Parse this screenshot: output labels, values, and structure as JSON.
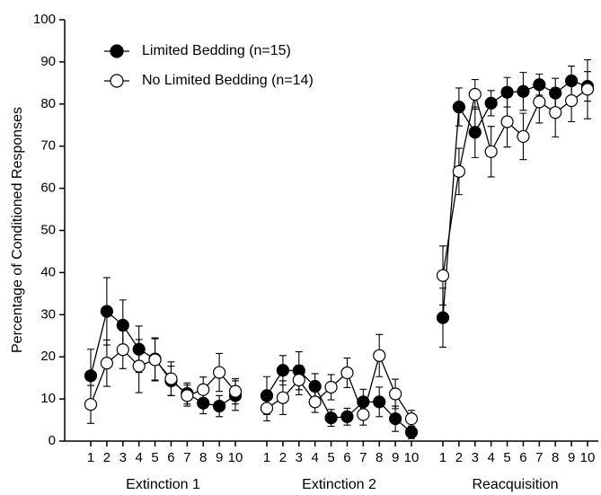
{
  "chart_data": {
    "type": "line",
    "ylabel": "Percentage of Conditioned Responses",
    "ylim": [
      0,
      100
    ],
    "yticks": [
      0,
      10,
      20,
      30,
      40,
      50,
      60,
      70,
      80,
      90,
      100
    ],
    "groups": [
      {
        "label": "Extinction 1",
        "categories": [
          "1",
          "2",
          "3",
          "4",
          "5",
          "6",
          "7",
          "8",
          "9",
          "10"
        ]
      },
      {
        "label": "Extinction 2",
        "categories": [
          "1",
          "2",
          "3",
          "4",
          "5",
          "6",
          "7",
          "8",
          "9",
          "10"
        ]
      },
      {
        "label": "Reacquisition",
        "categories": [
          "1",
          "2",
          "3",
          "4",
          "5",
          "6",
          "7",
          "8",
          "9",
          "10"
        ]
      }
    ],
    "legend": "upper left",
    "series": [
      {
        "name": "Limited Bedding (n=15)",
        "color": "#000000",
        "fill": "#000000",
        "values": [
          [
            15.5,
            30.8,
            27.5,
            21.8,
            19.5,
            14.3,
            11.3,
            9,
            8.3,
            10.8
          ],
          [
            10.8,
            16.8,
            16.7,
            13,
            5.5,
            5.8,
            9.3,
            9.3,
            5.3,
            2.1
          ],
          [
            29.3,
            79.3,
            73.3,
            80.2,
            82.8,
            83,
            84.6,
            82.6,
            85.5,
            84.2
          ]
        ],
        "errors": [
          [
            6.3,
            8,
            6,
            5.5,
            5,
            3.5,
            2.5,
            2.5,
            2.5,
            3.5
          ],
          [
            4.5,
            3.5,
            4.5,
            3,
            2,
            2,
            3,
            3.5,
            3,
            1.5
          ],
          [
            7,
            4.5,
            6,
            3,
            3.5,
            4.5,
            2.5,
            3.5,
            3.5,
            3.5
          ]
        ]
      },
      {
        "name": "No Limited Bedding (n=14)",
        "color": "#000000",
        "fill": "#ffffff",
        "values": [
          [
            8.7,
            18.5,
            21.7,
            17.8,
            19.3,
            14.8,
            10.8,
            12.2,
            16.3,
            11.8
          ],
          [
            7.8,
            10.3,
            14.5,
            9.3,
            12.8,
            16.2,
            6.3,
            20.3,
            11.2,
            5.3
          ],
          [
            39.3,
            64,
            82.3,
            68.7,
            75.8,
            72.3,
            80.5,
            78,
            80.8,
            83.5
          ]
        ],
        "errors": [
          [
            4.5,
            5.5,
            4.5,
            6.3,
            5,
            4,
            2.5,
            3,
            4.5,
            3
          ],
          [
            3,
            4,
            3.5,
            2.5,
            3,
            3.5,
            2.5,
            5,
            3.5,
            2
          ],
          [
            7,
            5.5,
            3.5,
            6,
            6,
            5.5,
            5,
            5.8,
            5,
            7
          ]
        ]
      }
    ]
  }
}
